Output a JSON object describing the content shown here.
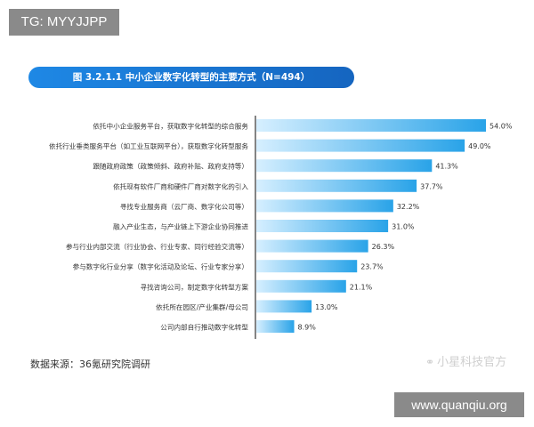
{
  "overlay": {
    "tg_tag": "TG: MYYJJPP",
    "url_tag": "www.quanqiu.org"
  },
  "chart_data": {
    "type": "bar",
    "orientation": "horizontal",
    "title": "图 3.2.1.1 中小企业数字化转型的主要方式（N=494）",
    "categories": [
      "依托中小企业服务平台，获取数字化转型的综合服务",
      "依托行业垂类服务平台（如工业互联网平台），获取数字化转型服务",
      "跟随政府政策（政策倾斜、政府补贴、政府支持等）",
      "依托现有软件厂商和硬件厂商对数字化的引入",
      "寻找专业服务商（云厂商、数字化公司等）",
      "融入产业生态，与产业链上下游企业协同推进",
      "参与行业内部交流（行业协会、行业专家、同行经验交流等）",
      "参与数字化行业分享（数字化活动及论坛、行业专家分享）",
      "寻找咨询公司，制定数字化转型方案",
      "依托所在园区/产业集群/母公司",
      "公司内部自行推动数字化转型"
    ],
    "values": [
      54.0,
      49.0,
      41.3,
      37.7,
      32.2,
      31.0,
      26.3,
      23.7,
      21.1,
      13.0,
      8.9
    ],
    "value_labels": [
      "54.0%",
      "49.0%",
      "41.3%",
      "37.7%",
      "32.2%",
      "31.0%",
      "26.3%",
      "23.7%",
      "21.1%",
      "13.0%",
      "8.9%"
    ],
    "unit": "%",
    "xlim": [
      0,
      60
    ],
    "colors": {
      "bar_start": "#d6efff",
      "bar_end": "#29a3e8",
      "axis": "#333333",
      "title_bg": "#1976d2"
    }
  },
  "footer": {
    "source": "数据来源：36氪研究院调研",
    "watermark": "小星科技官方",
    "watermark_icon": "weibo-icon"
  }
}
